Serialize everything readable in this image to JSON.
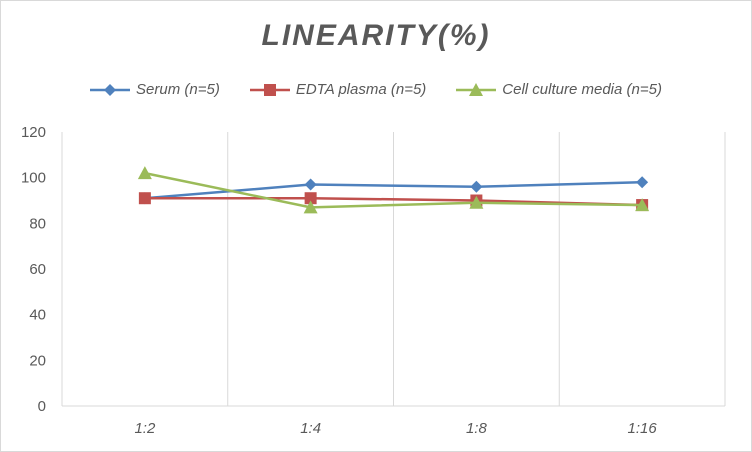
{
  "chart_data": {
    "type": "line",
    "title": "LINEARITY(%)",
    "xlabel": "",
    "ylabel": "",
    "categories": [
      "1:2",
      "1:4",
      "1:8",
      "1:16"
    ],
    "ylim": [
      0,
      120
    ],
    "yticks": [
      0,
      20,
      40,
      60,
      80,
      100,
      120
    ],
    "grid": "vertical",
    "legend_position": "top",
    "series": [
      {
        "name": "Serum (n=5)",
        "values": [
          91,
          97,
          96,
          98
        ],
        "color": "#4f81bd",
        "marker": "diamond"
      },
      {
        "name": "EDTA plasma (n=5)",
        "values": [
          91,
          91,
          90,
          88
        ],
        "color": "#c0504d",
        "marker": "square"
      },
      {
        "name": "Cell culture media (n=5)",
        "values": [
          102,
          87,
          89,
          88
        ],
        "color": "#9bbb59",
        "marker": "triangle"
      }
    ]
  }
}
